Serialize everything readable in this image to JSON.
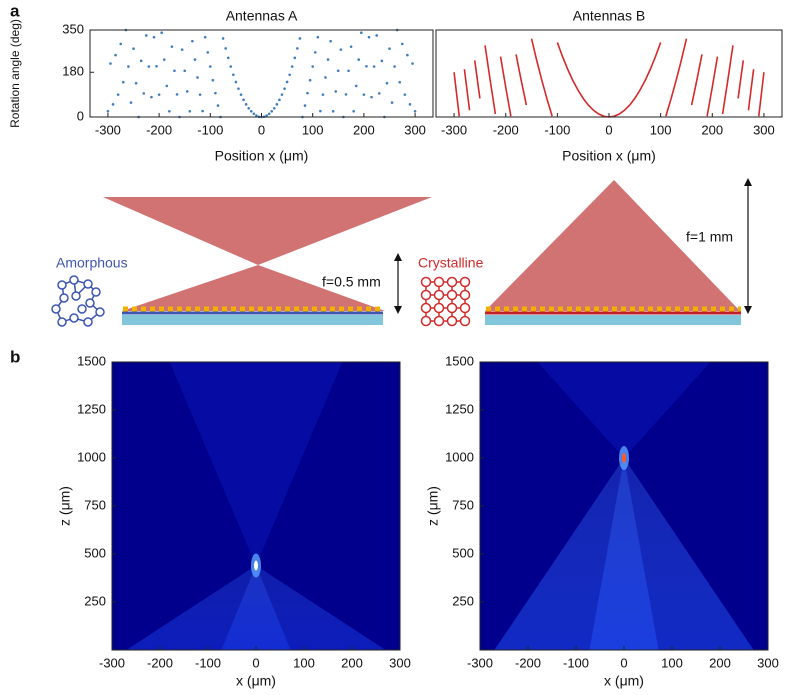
{
  "panel_labels": [
    "a",
    "b"
  ],
  "diagram": {
    "amorphous": "Amorphous",
    "crystalline": "Crystalline",
    "focal_a": "f=0.5 mm",
    "focal_b": "f=1 mm"
  },
  "chart_data": [
    {
      "type": "scatter",
      "title": "Antennas A",
      "x_label": "Position x (μm)",
      "y_label": "Rotation angle (deg)",
      "color": "#3d7cbf",
      "x": [
        -300,
        -295,
        -290,
        -285,
        -280,
        -275,
        -270,
        -265,
        -260,
        -255,
        -250,
        -245,
        -240,
        -235,
        -230,
        -225,
        -220,
        -215,
        -210,
        -205,
        -200,
        -195,
        -190,
        -185,
        -180,
        -175,
        -170,
        -165,
        -160,
        -155,
        -150,
        -145,
        -140,
        -135,
        -130,
        -125,
        -120,
        -115,
        -110,
        -105,
        -100,
        -95,
        -90,
        -85,
        -80,
        -75,
        -70,
        -65,
        -60,
        -55,
        -50,
        -45,
        -40,
        -35,
        -30,
        -25,
        -20,
        -15,
        -10,
        -5,
        0,
        5,
        10,
        15,
        20,
        25,
        30,
        35,
        40,
        45,
        50,
        55,
        60,
        65,
        70,
        75,
        80,
        85,
        90,
        95,
        100,
        105,
        110,
        115,
        120,
        125,
        130,
        135,
        140,
        145,
        150,
        155,
        160,
        165,
        170,
        175,
        180,
        185,
        190,
        195,
        200,
        205,
        210,
        215,
        220,
        225,
        230,
        235,
        240,
        245,
        250,
        255,
        260,
        265,
        270,
        275,
        280,
        285,
        290,
        295,
        300
      ],
      "values": [
        23,
        215,
        51,
        249,
        90,
        294,
        140,
        350,
        203,
        58,
        275,
        136,
        0,
        226,
        95,
        328,
        203,
        80,
        321,
        204,
        90,
        339,
        231,
        125,
        23,
        283,
        186,
        91,
        0,
        271,
        186,
        103,
        23,
        305,
        231,
        159,
        90,
        24,
        321,
        260,
        203,
        148,
        96,
        46,
        0,
        316,
        276,
        238,
        203,
        170,
        141,
        114,
        90,
        69,
        51,
        35,
        23,
        13,
        6,
        1,
        0,
        1,
        6,
        13,
        23,
        35,
        51,
        69,
        90,
        114,
        141,
        170,
        203,
        238,
        276,
        316,
        0,
        46,
        96,
        148,
        203,
        260,
        321,
        24,
        90,
        159,
        231,
        305,
        23,
        103,
        186,
        271,
        0,
        91,
        186,
        283,
        23,
        125,
        231,
        339,
        90,
        204,
        321,
        80,
        203,
        328,
        95,
        226,
        0,
        136,
        275,
        58,
        203,
        350,
        140,
        294,
        90,
        249,
        51,
        215,
        23
      ],
      "xlim": [
        -335,
        335
      ],
      "xticks": [
        -300,
        -200,
        -100,
        0,
        100,
        200,
        300
      ],
      "ylim": [
        0,
        350
      ],
      "yticks": [
        0,
        180,
        350
      ]
    },
    {
      "type": "line",
      "title": "Antennas B",
      "x_label": "Position x (μm)",
      "color": "#d42a2a",
      "x": [
        -300,
        -290,
        -285,
        -280,
        -270,
        -265,
        -260,
        -250,
        -245,
        -240,
        -230,
        -220,
        -215,
        -210,
        -200,
        -190,
        -185,
        -180,
        -170,
        -160,
        -155,
        -150,
        -140,
        -130,
        -120,
        -110,
        -105,
        -100,
        -90,
        -80,
        -70,
        -60,
        -50,
        -40,
        -30,
        -20,
        -10,
        0,
        10,
        20,
        30,
        40,
        50,
        60,
        70,
        80,
        90,
        100,
        105,
        110,
        120,
        130,
        140,
        150,
        155,
        160,
        170,
        180,
        185,
        190,
        200,
        210,
        215,
        220,
        230,
        240,
        245,
        250,
        260,
        265,
        270,
        280,
        285,
        290,
        300
      ],
      "values": [
        180,
        3,
        null,
        192,
        27,
        null,
        228,
        75,
        null,
        288,
        147,
        12,
        null,
        243,
        120,
        3,
        null,
        252,
        147,
        48,
        null,
        315,
        228,
        147,
        72,
        3,
        null,
        300,
        243,
        192,
        147,
        108,
        75,
        48,
        27,
        12,
        3,
        0,
        3,
        12,
        27,
        48,
        75,
        108,
        147,
        192,
        243,
        300,
        null,
        3,
        72,
        147,
        228,
        315,
        null,
        48,
        147,
        252,
        null,
        3,
        120,
        243,
        null,
        12,
        147,
        288,
        null,
        75,
        228,
        null,
        27,
        192,
        null,
        3,
        180
      ],
      "xlim": [
        -335,
        335
      ],
      "xticks": [
        -300,
        -200,
        -100,
        0,
        100,
        200,
        300
      ],
      "ylim": [
        0,
        350
      ]
    },
    {
      "type": "heatmap",
      "x_label": "x (μm)",
      "y_label": "z (μm)",
      "xlim": [
        -300,
        300
      ],
      "xticks": [
        -300,
        -200,
        -100,
        0,
        100,
        200,
        300
      ],
      "ylim": [
        0,
        1500
      ],
      "yticks": [
        250,
        500,
        750,
        1000,
        1250,
        1500
      ]
    },
    {
      "type": "heatmap",
      "x_label": "x (μm)",
      "y_label": "z (μm)",
      "xlim": [
        -300,
        300
      ],
      "xticks": [
        -300,
        -200,
        -100,
        0,
        100,
        200,
        300
      ],
      "ylim": [
        0,
        1500
      ],
      "yticks": [
        250,
        500,
        750,
        1000,
        1250,
        1500
      ]
    }
  ]
}
